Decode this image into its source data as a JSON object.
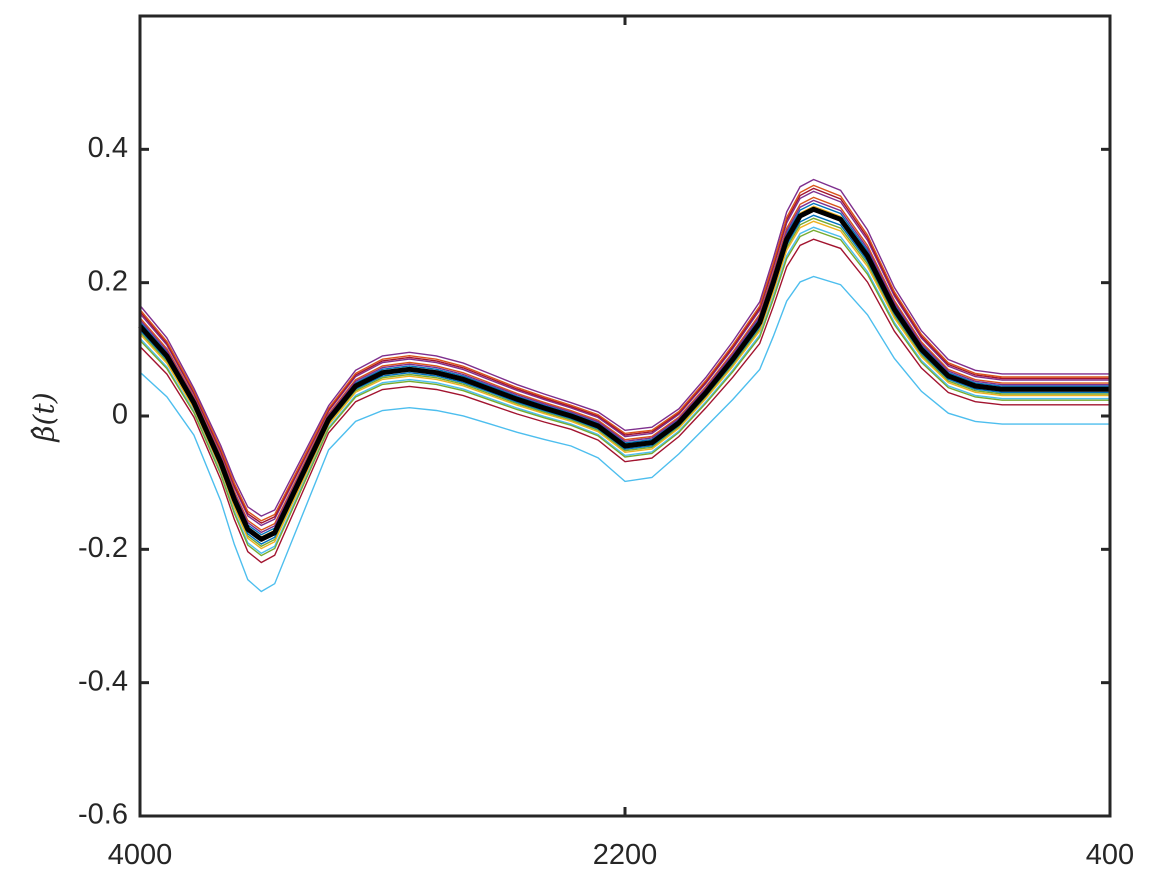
{
  "chart_data": {
    "type": "line",
    "title": "",
    "xlabel": "",
    "ylabel": "β̂(t)",
    "x_reversed": true,
    "xlim": [
      4000,
      400
    ],
    "ylim": [
      -0.6,
      0.6
    ],
    "xticks": [
      4000,
      2200,
      400
    ],
    "xtick_labels": [
      "4000",
      "2200",
      "400"
    ],
    "yticks": [
      -0.6,
      -0.4,
      -0.2,
      0,
      0.2,
      0.4
    ],
    "ytick_labels": [
      "-0.6",
      "-0.4",
      "-0.2",
      "0",
      "0.2",
      "0.4"
    ],
    "grid": false,
    "legend": "none",
    "mean_curve": {
      "color": "#000000",
      "x": [
        4000,
        3900,
        3800,
        3700,
        3650,
        3600,
        3550,
        3500,
        3400,
        3300,
        3200,
        3100,
        3000,
        2900,
        2800,
        2700,
        2600,
        2500,
        2400,
        2300,
        2250,
        2200,
        2100,
        2000,
        1900,
        1800,
        1700,
        1650,
        1600,
        1550,
        1500,
        1400,
        1300,
        1200,
        1100,
        1000,
        900,
        800,
        700,
        600,
        500,
        400
      ],
      "y": [
        0.135,
        0.09,
        0.02,
        -0.07,
        -0.125,
        -0.17,
        -0.185,
        -0.175,
        -0.09,
        -0.005,
        0.045,
        0.065,
        0.07,
        0.065,
        0.055,
        0.04,
        0.025,
        0.012,
        0.0,
        -0.015,
        -0.03,
        -0.045,
        -0.04,
        -0.01,
        0.035,
        0.085,
        0.14,
        0.2,
        0.265,
        0.3,
        0.31,
        0.295,
        0.24,
        0.16,
        0.1,
        0.06,
        0.045,
        0.04,
        0.04,
        0.04,
        0.04,
        0.04
      ]
    },
    "series": [
      {
        "color": "#0072BD",
        "dy": 0.004
      },
      {
        "color": "#D95319",
        "dy": 0.008
      },
      {
        "color": "#EDB120",
        "dy": 0.002
      },
      {
        "color": "#7E2F8E",
        "dy": 0.012
      },
      {
        "color": "#77AC30",
        "dy": -0.006
      },
      {
        "color": "#4DBEEE",
        "dy": -0.012
      },
      {
        "color": "#A2142F",
        "dy": 0.014
      },
      {
        "color": "#0072BD",
        "dy": -0.004
      },
      {
        "color": "#D95319",
        "dy": 0.016
      },
      {
        "color": "#EDB120",
        "dy": -0.008
      },
      {
        "color": "#7E2F8E",
        "dy": 0.006
      },
      {
        "color": "#77AC30",
        "dy": -0.014
      },
      {
        "color": "#4DBEEE",
        "dy": -0.045
      },
      {
        "color": "#A2142F",
        "dy": -0.02
      },
      {
        "color": "#7E2F8E",
        "dy": 0.02
      }
    ]
  }
}
